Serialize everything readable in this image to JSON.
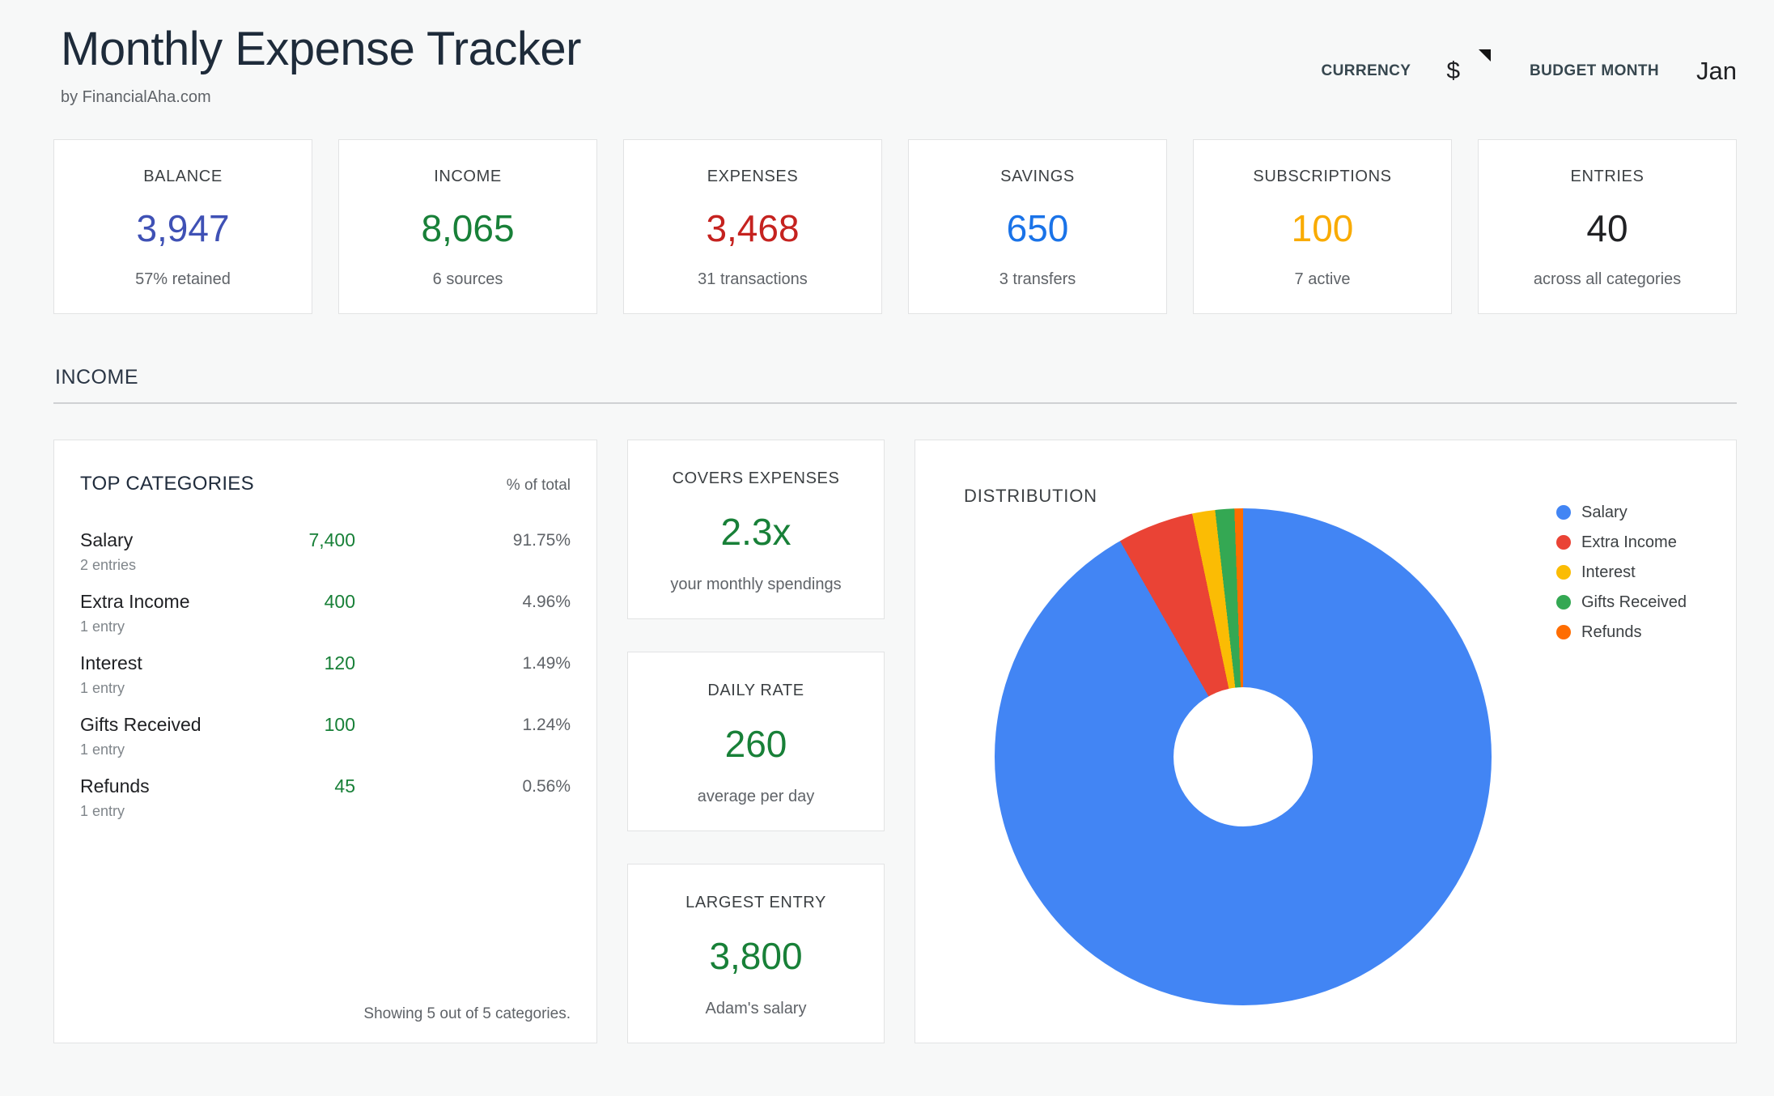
{
  "header": {
    "title": "Monthly Expense Tracker",
    "subtitle": "by FinancialAha.com",
    "currency_label": "CURRENCY",
    "currency_value": "$",
    "budget_month_label": "BUDGET MONTH",
    "budget_month_value": "Jan"
  },
  "summary_cards": [
    {
      "label": "BALANCE",
      "value": "3,947",
      "sub": "57% retained",
      "color": "#3f51b5"
    },
    {
      "label": "INCOME",
      "value": "8,065",
      "sub": "6 sources",
      "color": "#188038"
    },
    {
      "label": "EXPENSES",
      "value": "3,468",
      "sub": "31 transactions",
      "color": "#c5221f"
    },
    {
      "label": "SAVINGS",
      "value": "650",
      "sub": "3 transfers",
      "color": "#1a73e8"
    },
    {
      "label": "SUBSCRIPTIONS",
      "value": "100",
      "sub": "7 active",
      "color": "#f9ab00"
    },
    {
      "label": "ENTRIES",
      "value": "40",
      "sub": "across all categories",
      "color": "#202124"
    }
  ],
  "income_section": {
    "title": "INCOME",
    "top_categories": {
      "title": "TOP CATEGORIES",
      "col_header": "% of total",
      "rows": [
        {
          "name": "Salary",
          "entries": "2 entries",
          "value": "7,400",
          "pct": "91.75%"
        },
        {
          "name": "Extra Income",
          "entries": "1 entry",
          "value": "400",
          "pct": "4.96%"
        },
        {
          "name": "Interest",
          "entries": "1 entry",
          "value": "120",
          "pct": "1.49%"
        },
        {
          "name": "Gifts Received",
          "entries": "1 entry",
          "value": "100",
          "pct": "1.24%"
        },
        {
          "name": "Refunds",
          "entries": "1 entry",
          "value": "45",
          "pct": "0.56%"
        }
      ],
      "footer": "Showing 5 out of 5 categories."
    },
    "stats": [
      {
        "label": "COVERS EXPENSES",
        "value": "2.3x",
        "sub": "your monthly spendings"
      },
      {
        "label": "DAILY RATE",
        "value": "260",
        "sub": "average per day"
      },
      {
        "label": "LARGEST ENTRY",
        "value": "3,800",
        "sub": "Adam's salary"
      }
    ]
  },
  "chart_data": {
    "type": "pie",
    "title": "DISTRIBUTION",
    "labels": [
      "Salary",
      "Extra Income",
      "Interest",
      "Gifts Received",
      "Refunds"
    ],
    "values": [
      7400,
      400,
      120,
      100,
      45
    ],
    "percentages": [
      91.75,
      4.96,
      1.49,
      1.24,
      0.56
    ],
    "colors": [
      "#4285f4",
      "#ea4335",
      "#fbbc04",
      "#34a853",
      "#ff6d01"
    ],
    "donut_hole_ratio": 0.28,
    "start_angle_deg": 0,
    "direction": "clockwise",
    "legend_position": "right"
  }
}
